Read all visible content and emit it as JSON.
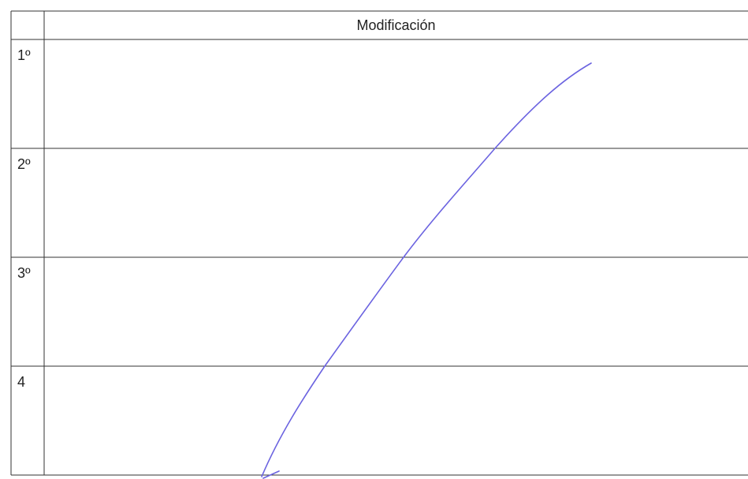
{
  "table": {
    "header": "Modificación",
    "rows": [
      {
        "label": "1º"
      },
      {
        "label": "2º"
      },
      {
        "label": "3º"
      },
      {
        "label": "4"
      }
    ]
  },
  "colors": {
    "grid_line": "#333333",
    "pen_stroke": "#6b63e0"
  }
}
